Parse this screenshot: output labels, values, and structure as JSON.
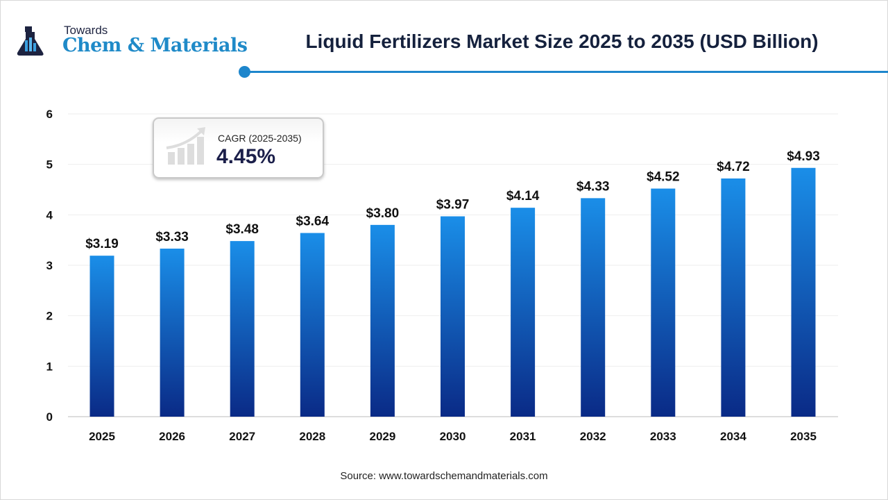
{
  "logo": {
    "line1": "Towards",
    "line2": "Chem & Materials"
  },
  "title": "Liquid Fertilizers Market Size 2025 to 2035 (USD Billion)",
  "cagr": {
    "label": "CAGR (2025-2035)",
    "value": "4.45%"
  },
  "source": "Source: www.towardschemandmaterials.com",
  "colors": {
    "accent": "#1d86cc",
    "bar_top": "#1a8ee8",
    "bar_bottom": "#0a2a86"
  },
  "chart_data": {
    "type": "bar",
    "title": "Liquid Fertilizers Market Size 2025 to 2035 (USD Billion)",
    "categories": [
      "2025",
      "2026",
      "2027",
      "2028",
      "2029",
      "2030",
      "2031",
      "2032",
      "2033",
      "2034",
      "2035"
    ],
    "values": [
      3.19,
      3.33,
      3.48,
      3.64,
      3.8,
      3.97,
      4.14,
      4.33,
      4.52,
      4.72,
      4.93
    ],
    "data_labels": [
      "$3.19",
      "$3.33",
      "$3.48",
      "$3.64",
      "$3.80",
      "$3.97",
      "$4.14",
      "$4.33",
      "$4.52",
      "$4.72",
      "$4.93"
    ],
    "yticks": [
      "0",
      "1",
      "2",
      "3",
      "4",
      "5",
      "6"
    ],
    "ylim": [
      0,
      6
    ],
    "grid": true,
    "xlabel": "",
    "ylabel": ""
  }
}
